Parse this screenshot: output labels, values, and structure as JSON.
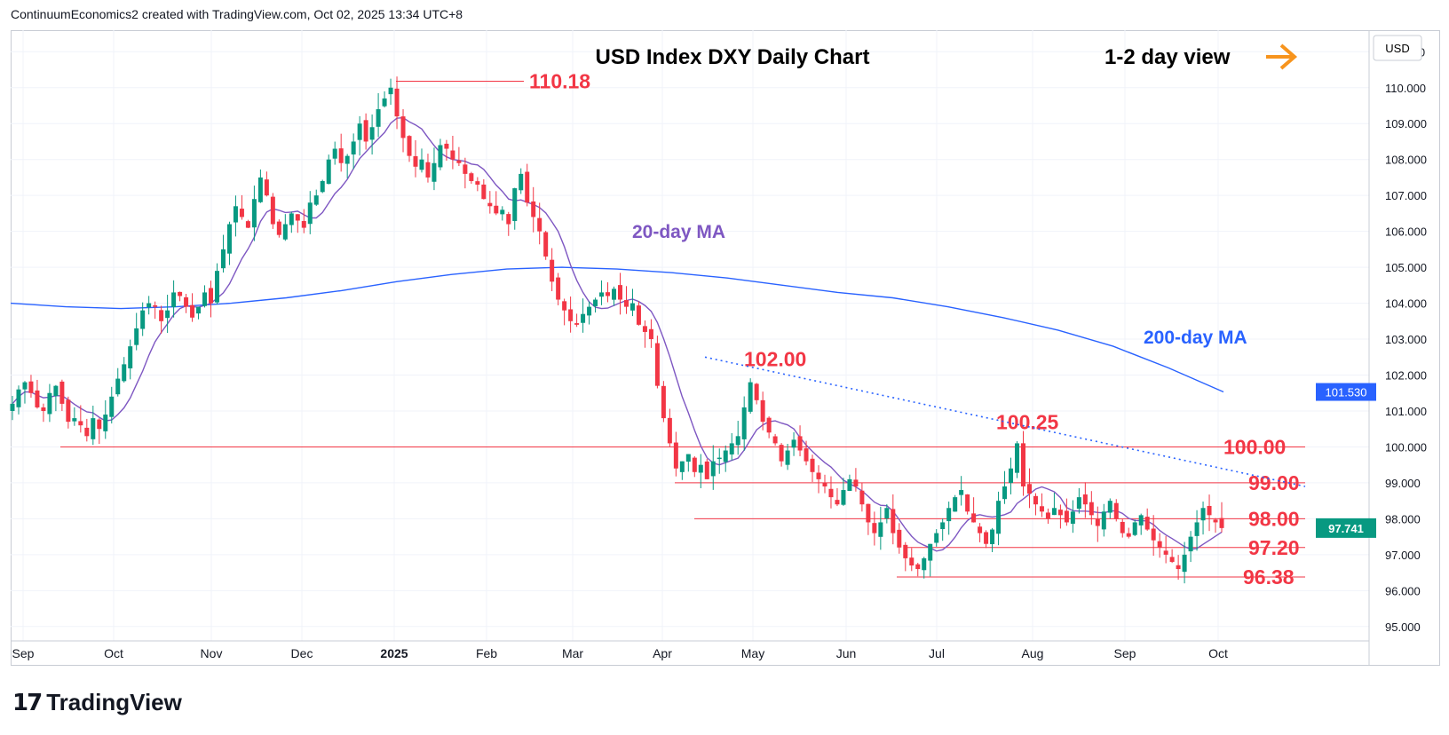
{
  "header": {
    "text": "ContinuumEconomics2 created with TradingView.com, Oct 02, 2025 13:34 UTC+8"
  },
  "logo": {
    "mark": "17",
    "text": "TradingView"
  },
  "chart_data": {
    "type": "candlestick",
    "title": "USD Index DXY Daily Chart",
    "view_label": "1-2 day view",
    "view_arrow": "right-arrow-icon",
    "currency": "USD",
    "y_range": [
      94.6,
      111.6
    ],
    "y_ticks": [
      "111.000",
      "110.000",
      "109.000",
      "108.000",
      "107.000",
      "106.000",
      "105.000",
      "104.000",
      "103.000",
      "102.000",
      "101.000",
      "100.000",
      "99.000",
      "98.000",
      "97.000",
      "96.000",
      "95.000"
    ],
    "x_ticks": [
      "Sep",
      "Oct",
      "Nov",
      "Dec",
      "2025",
      "Feb",
      "Mar",
      "Apr",
      "May",
      "Jun",
      "Jul",
      "Aug",
      "Sep",
      "Oct"
    ],
    "close_series": [
      101.2,
      101.6,
      101.8,
      101.5,
      101.1,
      101.0,
      101.5,
      101.7,
      101.2,
      100.7,
      100.8,
      100.6,
      100.3,
      100.8,
      100.5,
      100.9,
      101.4,
      101.9,
      102.3,
      102.8,
      103.3,
      103.8,
      104.0,
      103.9,
      103.5,
      103.8,
      104.3,
      104.2,
      103.9,
      103.6,
      103.9,
      104.3,
      104.0,
      104.9,
      105.5,
      106.2,
      106.7,
      106.4,
      106.1,
      106.9,
      107.5,
      107.0,
      106.2,
      105.9,
      106.2,
      106.5,
      106.3,
      106.1,
      106.8,
      107.0,
      107.4,
      108.0,
      108.3,
      107.9,
      108.1,
      108.5,
      109.0,
      108.5,
      108.9,
      109.4,
      109.7,
      110.0,
      109.2,
      108.6,
      108.1,
      107.8,
      108.0,
      107.5,
      107.9,
      108.4,
      108.3,
      108.0,
      107.9,
      107.6,
      107.4,
      107.3,
      106.9,
      106.7,
      106.5,
      106.6,
      106.2,
      107.2,
      107.6,
      106.8,
      106.4,
      106.0,
      105.3,
      104.6,
      104.1,
      103.8,
      103.5,
      103.4,
      103.7,
      103.9,
      104.1,
      104.3,
      104.2,
      104.4,
      104.1,
      103.9,
      104.0,
      103.4,
      103.2,
      103.0,
      101.7,
      100.8,
      100.1,
      99.4,
      99.6,
      99.8,
      99.3,
      99.5,
      99.1,
      99.6,
      99.7,
      99.9,
      100.1,
      100.3,
      101.1,
      101.8,
      101.3,
      100.7,
      100.4,
      100.1,
      99.6,
      99.9,
      100.2,
      99.9,
      99.6,
      99.3,
      99.1,
      98.9,
      98.6,
      98.4,
      98.8,
      99.1,
      98.9,
      98.4,
      97.9,
      97.6,
      97.9,
      98.3,
      97.6,
      97.2,
      96.9,
      96.7,
      96.6,
      96.9,
      97.3,
      97.6,
      97.9,
      98.3,
      98.6,
      98.8,
      98.2,
      97.9,
      97.6,
      97.3,
      97.7,
      98.5,
      98.9,
      99.4,
      100.1,
      98.9,
      98.7,
      98.4,
      98.2,
      98.0,
      98.3,
      98.1,
      97.9,
      98.2,
      98.6,
      98.4,
      98.1,
      97.8,
      98.2,
      98.5,
      98.0,
      97.6,
      97.5,
      97.9,
      98.1,
      97.7,
      97.4,
      97.2,
      97.0,
      96.8,
      96.6,
      97.0,
      97.5,
      97.9,
      98.3,
      98.1,
      97.9,
      97.741
    ],
    "levels": [
      {
        "label": "110.18",
        "value": 110.18
      },
      {
        "label": "102.00",
        "value": 102.0
      },
      {
        "label": "100.25",
        "value": 100.25
      },
      {
        "label": "100.00",
        "value": 100.0
      },
      {
        "label": "99.00",
        "value": 99.0
      },
      {
        "label": "98.00",
        "value": 98.0
      },
      {
        "label": "97.20",
        "value": 97.2
      },
      {
        "label": "96.38",
        "value": 96.38
      }
    ],
    "ma20_label": "20-day MA",
    "ma200_label": "200-day MA",
    "ma200_series": [
      104.0,
      103.9,
      103.85,
      103.9,
      104.0,
      104.15,
      104.35,
      104.6,
      104.8,
      104.95,
      105.0,
      104.95,
      104.85,
      104.7,
      104.5,
      104.3,
      104.15,
      103.9,
      103.6,
      103.25,
      102.8,
      102.2,
      101.53
    ],
    "last_ma200": "101.530",
    "last_price": "97.741",
    "colors": {
      "up": "#089981",
      "down": "#f23645",
      "level": "#f23645",
      "ma20": "#7e57c2",
      "ma200": "#2962ff",
      "trend": "#2962ff",
      "label_text": "#f23645",
      "arrow": "#f7941d"
    }
  }
}
